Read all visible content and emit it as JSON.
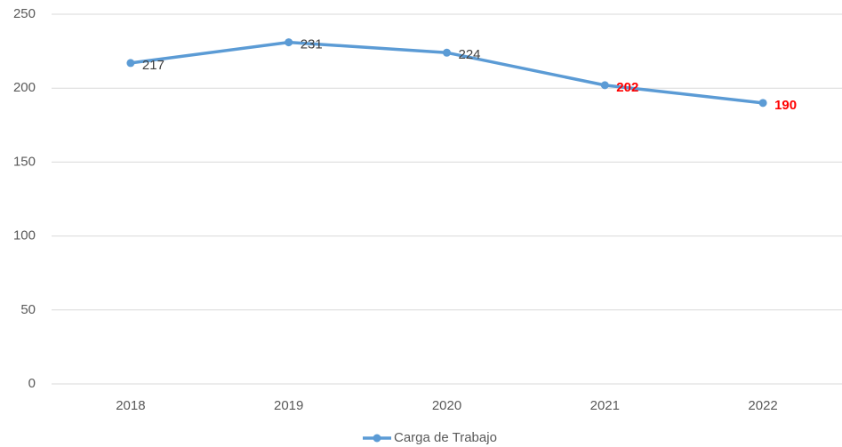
{
  "chart_data": {
    "type": "line",
    "categories": [
      "2018",
      "2019",
      "2020",
      "2021",
      "2022"
    ],
    "series": [
      {
        "name": "Carga de Trabajo",
        "color": "#5b9bd5",
        "values": [
          217,
          231,
          224,
          202,
          190
        ],
        "label_colors": [
          "#404040",
          "#404040",
          "#404040",
          "#ff0000",
          "#ff0000"
        ],
        "label_bold": [
          false,
          false,
          false,
          true,
          true
        ]
      }
    ],
    "ylim": [
      0,
      250
    ],
    "yticks": [
      0,
      50,
      100,
      150,
      200,
      250
    ],
    "grid": true,
    "legend": "bottom"
  }
}
